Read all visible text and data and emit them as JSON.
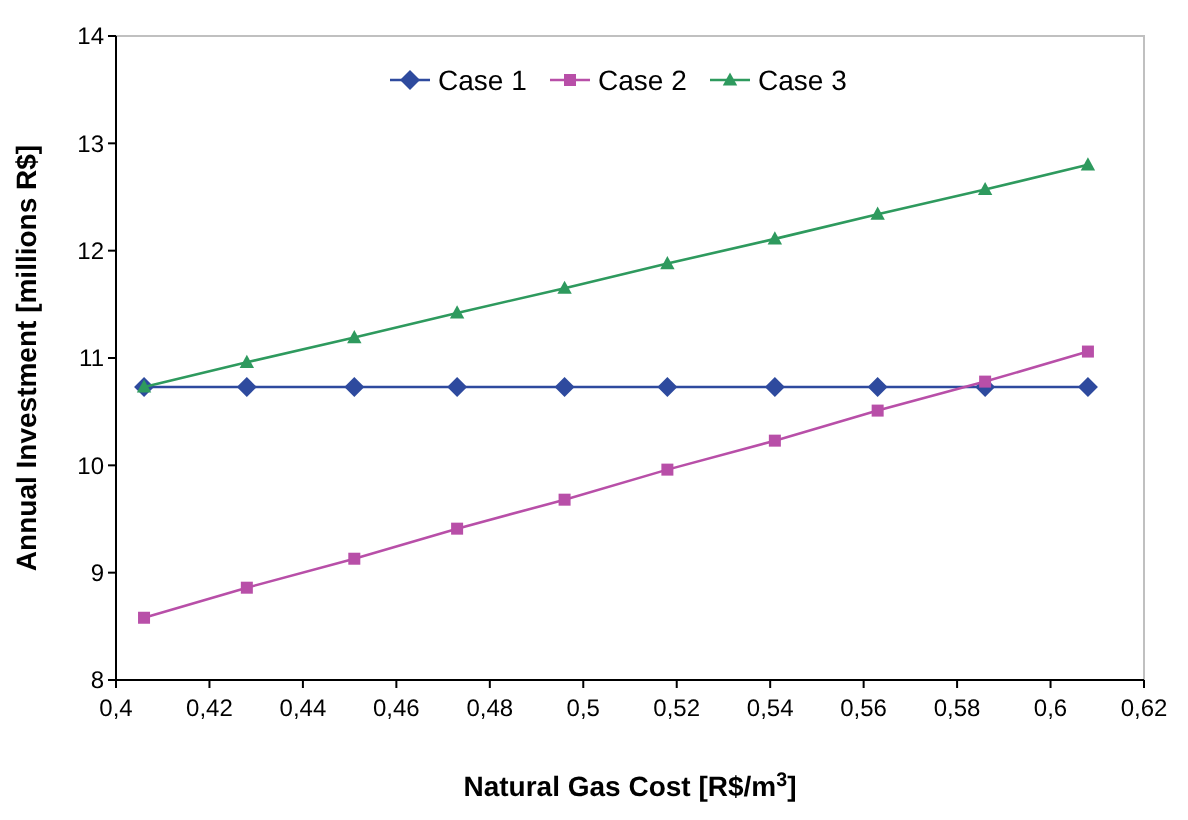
{
  "chart_data": {
    "type": "line",
    "xlabel": "Natural Gas Cost [R$/m$^{3}$]",
    "ylabel": "Annual Investment [millions R$]",
    "x": [
      0.406,
      0.428,
      0.451,
      0.473,
      0.496,
      0.518,
      0.541,
      0.563,
      0.586,
      0.608
    ],
    "series": [
      {
        "name": "Case 1",
        "color": "#2e4a9e",
        "marker": "diamond",
        "values": [
          10.73,
          10.73,
          10.73,
          10.73,
          10.73,
          10.73,
          10.73,
          10.73,
          10.73,
          10.73
        ]
      },
      {
        "name": "Case 2",
        "color": "#b84fa8",
        "marker": "square",
        "values": [
          8.58,
          8.86,
          9.13,
          9.41,
          9.68,
          9.96,
          10.23,
          10.51,
          10.78,
          11.06
        ]
      },
      {
        "name": "Case 3",
        "color": "#2e9a5e",
        "marker": "triangle",
        "values": [
          10.73,
          10.96,
          11.19,
          11.42,
          11.65,
          11.88,
          12.11,
          12.34,
          12.57,
          12.8
        ]
      }
    ],
    "xlim": [
      0.4,
      0.62
    ],
    "xticks": [
      {
        "value": 0.4,
        "label": "0,4"
      },
      {
        "value": 0.42,
        "label": "0,42"
      },
      {
        "value": 0.44,
        "label": "0,44"
      },
      {
        "value": 0.46,
        "label": "0,46"
      },
      {
        "value": 0.48,
        "label": "0,48"
      },
      {
        "value": 0.5,
        "label": "0,5"
      },
      {
        "value": 0.52,
        "label": "0,52"
      },
      {
        "value": 0.54,
        "label": "0,54"
      },
      {
        "value": 0.56,
        "label": "0,56"
      },
      {
        "value": 0.58,
        "label": "0,58"
      },
      {
        "value": 0.6,
        "label": "0,6"
      },
      {
        "value": 0.62,
        "label": "0,62"
      }
    ],
    "ylim": [
      8,
      14
    ],
    "yticks": [
      8,
      9,
      10,
      11,
      12,
      13,
      14
    ],
    "grid": false,
    "legend": "top",
    "line_style": "solid"
  }
}
